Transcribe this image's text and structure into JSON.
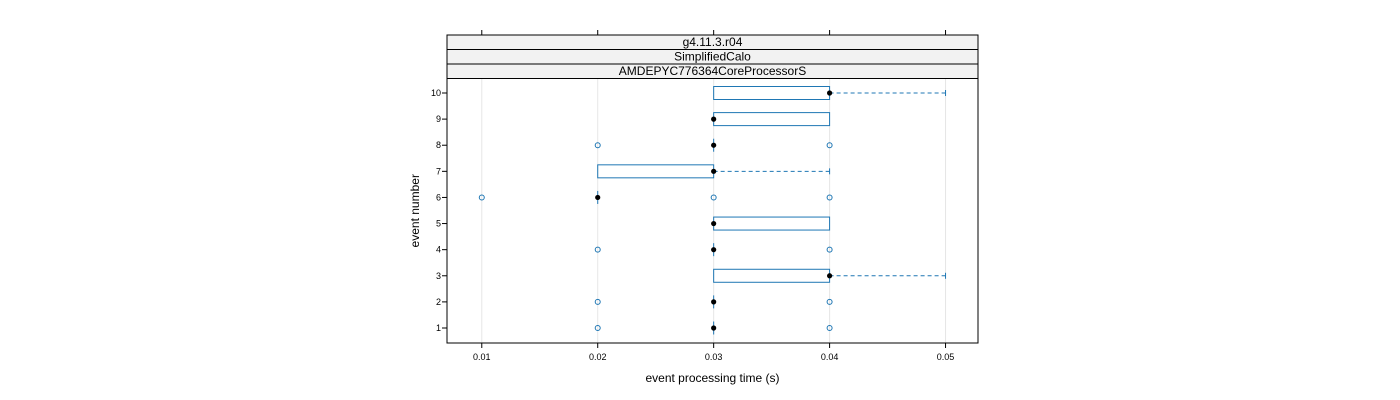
{
  "chart_data": {
    "type": "boxplot",
    "orientation": "horizontal",
    "strips": [
      "g4.11.3.r04",
      "SimplifiedCalo",
      "AMDEPYC776364CoreProcessorS"
    ],
    "xlabel": "event processing time (s)",
    "ylabel": "event number",
    "xlim": [
      0.007,
      0.0528
    ],
    "x_ticks": [
      0.01,
      0.02,
      0.03,
      0.04,
      0.05
    ],
    "x_tick_labels": [
      "0.01",
      "0.02",
      "0.03",
      "0.04",
      "0.05"
    ],
    "categories": [
      "1",
      "2",
      "3",
      "4",
      "5",
      "6",
      "7",
      "8",
      "9",
      "10"
    ],
    "grid": "vertical",
    "colors": {
      "box": "#1f77b4",
      "median": "#000000",
      "outlier": "#1f77b4",
      "grid": "#e6e6e6"
    },
    "boxes": [
      {
        "event": "1",
        "q1": 0.03,
        "median": 0.03,
        "q3": 0.03,
        "whisker_low": 0.03,
        "whisker_high": 0.03,
        "outliers": [
          0.02,
          0.04
        ]
      },
      {
        "event": "2",
        "q1": 0.03,
        "median": 0.03,
        "q3": 0.03,
        "whisker_low": 0.03,
        "whisker_high": 0.03,
        "outliers": [
          0.02,
          0.04
        ]
      },
      {
        "event": "3",
        "q1": 0.03,
        "median": 0.04,
        "q3": 0.04,
        "whisker_low": 0.03,
        "whisker_high": 0.05,
        "outliers": []
      },
      {
        "event": "4",
        "q1": 0.03,
        "median": 0.03,
        "q3": 0.03,
        "whisker_low": 0.03,
        "whisker_high": 0.03,
        "outliers": [
          0.02,
          0.04
        ]
      },
      {
        "event": "5",
        "q1": 0.03,
        "median": 0.03,
        "q3": 0.04,
        "whisker_low": 0.03,
        "whisker_high": 0.04,
        "outliers": []
      },
      {
        "event": "6",
        "q1": 0.02,
        "median": 0.02,
        "q3": 0.02,
        "whisker_low": 0.02,
        "whisker_high": 0.02,
        "outliers": [
          0.01,
          0.03,
          0.04
        ]
      },
      {
        "event": "7",
        "q1": 0.02,
        "median": 0.03,
        "q3": 0.03,
        "whisker_low": 0.02,
        "whisker_high": 0.04,
        "outliers": []
      },
      {
        "event": "8",
        "q1": 0.03,
        "median": 0.03,
        "q3": 0.03,
        "whisker_low": 0.03,
        "whisker_high": 0.03,
        "outliers": [
          0.02,
          0.04
        ]
      },
      {
        "event": "9",
        "q1": 0.03,
        "median": 0.03,
        "q3": 0.04,
        "whisker_low": 0.03,
        "whisker_high": 0.04,
        "outliers": []
      },
      {
        "event": "10",
        "q1": 0.03,
        "median": 0.04,
        "q3": 0.04,
        "whisker_low": 0.03,
        "whisker_high": 0.05,
        "outliers": []
      }
    ]
  }
}
